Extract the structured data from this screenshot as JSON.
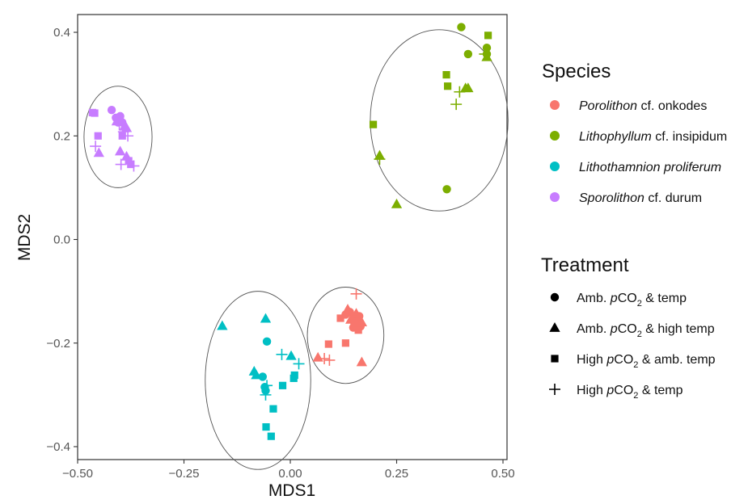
{
  "chart_data": {
    "type": "scatter",
    "xlabel": "MDS1",
    "ylabel": "MDS2",
    "xlim": [
      -0.5,
      0.5
    ],
    "ylim": [
      -0.4,
      0.4
    ],
    "x_ticks": [
      -0.5,
      -0.25,
      0.0,
      0.25,
      0.5
    ],
    "x_tick_labels": [
      "−0.50",
      "−0.25",
      "0.00",
      "0.25",
      "0.50"
    ],
    "y_ticks": [
      -0.4,
      -0.2,
      0.0,
      0.2,
      0.4
    ],
    "y_tick_labels": [
      "−0.4",
      "−0.2",
      "0.0",
      "0.2",
      "0.4"
    ],
    "grid": false,
    "legend_placement": "right",
    "legend": {
      "species_title": "Species",
      "species": [
        {
          "italic": "Porolithon",
          "rest": " cf. onkodes",
          "color": "#F8766D"
        },
        {
          "italic": "Lithophyllum",
          "rest": " cf. insipidum",
          "color": "#7CAE00"
        },
        {
          "italic": "Lithothamnion proliferum",
          "rest": "",
          "color": "#00BFC4"
        },
        {
          "italic": "Sporolithon",
          "rest": " cf. durum",
          "color": "#C77CFF"
        }
      ],
      "treatment_title": "Treatment",
      "treatments": [
        {
          "shape": "circle",
          "pre": "Amb. ",
          "p": "p",
          "co": "CO",
          "sub": "2",
          "post": " & temp"
        },
        {
          "shape": "triangle",
          "pre": "Amb. ",
          "p": "p",
          "co": "CO",
          "sub": "2",
          "post": " & high temp"
        },
        {
          "shape": "square",
          "pre": "High ",
          "p": "p",
          "co": "CO",
          "sub": "2",
          "post": " & amb. temp"
        },
        {
          "shape": "plus",
          "pre": "High ",
          "p": "p",
          "co": "CO",
          "sub": "2",
          "post": " & temp"
        }
      ]
    },
    "ellipses": [
      {
        "species": 0,
        "cx": 0.13,
        "cy": -0.185,
        "rx": 0.09,
        "ry": 0.093
      },
      {
        "species": 1,
        "cx": 0.35,
        "cy": 0.23,
        "rx": 0.162,
        "ry": 0.175
      },
      {
        "species": 2,
        "cx": -0.076,
        "cy": -0.272,
        "rx": 0.124,
        "ry": 0.172
      },
      {
        "species": 3,
        "cx": -0.405,
        "cy": 0.198,
        "rx": 0.08,
        "ry": 0.098
      }
    ],
    "series": [
      {
        "species": 0,
        "shape": "circle",
        "points": [
          [
            0.14,
            -0.14
          ],
          [
            0.15,
            -0.15
          ],
          [
            0.16,
            -0.155
          ],
          [
            0.155,
            -0.162
          ],
          [
            0.165,
            -0.168
          ],
          [
            0.148,
            -0.17
          ],
          [
            0.162,
            -0.148
          ],
          [
            0.13,
            -0.145
          ]
        ]
      },
      {
        "species": 0,
        "shape": "triangle",
        "points": [
          [
            0.135,
            -0.135
          ],
          [
            0.155,
            -0.143
          ],
          [
            0.168,
            -0.16
          ],
          [
            0.065,
            -0.228
          ],
          [
            0.168,
            -0.237
          ],
          [
            0.142,
            -0.155
          ]
        ]
      },
      {
        "species": 0,
        "shape": "square",
        "points": [
          [
            0.118,
            -0.152
          ],
          [
            0.09,
            -0.202
          ],
          [
            0.13,
            -0.2
          ],
          [
            0.15,
            -0.16
          ],
          [
            0.16,
            -0.175
          ]
        ]
      },
      {
        "species": 0,
        "shape": "plus",
        "points": [
          [
            0.155,
            -0.105
          ],
          [
            0.08,
            -0.23
          ],
          [
            0.092,
            -0.233
          ],
          [
            0.145,
            -0.145
          ]
        ]
      },
      {
        "species": 1,
        "shape": "circle",
        "points": [
          [
            0.402,
            0.41
          ],
          [
            0.462,
            0.37
          ],
          [
            0.462,
            0.358
          ],
          [
            0.418,
            0.358
          ],
          [
            0.368,
            0.097
          ]
        ]
      },
      {
        "species": 1,
        "shape": "triangle",
        "points": [
          [
            0.462,
            0.352
          ],
          [
            0.418,
            0.292
          ],
          [
            0.412,
            0.292
          ],
          [
            0.21,
            0.162
          ],
          [
            0.25,
            0.068
          ]
        ]
      },
      {
        "species": 1,
        "shape": "square",
        "points": [
          [
            0.465,
            0.394
          ],
          [
            0.367,
            0.318
          ],
          [
            0.37,
            0.296
          ],
          [
            0.195,
            0.222
          ]
        ]
      },
      {
        "species": 1,
        "shape": "plus",
        "points": [
          [
            0.457,
            0.358
          ],
          [
            0.398,
            0.285
          ],
          [
            0.39,
            0.261
          ],
          [
            0.21,
            0.155
          ]
        ]
      },
      {
        "species": 2,
        "shape": "circle",
        "points": [
          [
            -0.055,
            -0.197
          ],
          [
            -0.065,
            -0.265
          ],
          [
            -0.06,
            -0.285
          ],
          [
            -0.058,
            -0.292
          ]
        ]
      },
      {
        "species": 2,
        "shape": "triangle",
        "points": [
          [
            -0.16,
            -0.167
          ],
          [
            -0.058,
            -0.153
          ],
          [
            -0.085,
            -0.255
          ],
          [
            -0.08,
            -0.262
          ],
          [
            0.002,
            -0.225
          ]
        ]
      },
      {
        "species": 2,
        "shape": "square",
        "points": [
          [
            -0.018,
            -0.282
          ],
          [
            0.008,
            -0.268
          ],
          [
            0.01,
            -0.262
          ],
          [
            -0.04,
            -0.327
          ],
          [
            -0.057,
            -0.362
          ],
          [
            -0.045,
            -0.38
          ]
        ]
      },
      {
        "species": 2,
        "shape": "plus",
        "points": [
          [
            -0.02,
            -0.222
          ],
          [
            0.02,
            -0.24
          ],
          [
            -0.055,
            -0.282
          ],
          [
            -0.058,
            -0.3
          ]
        ]
      },
      {
        "species": 3,
        "shape": "circle",
        "points": [
          [
            -0.42,
            0.25
          ],
          [
            -0.41,
            0.235
          ],
          [
            -0.4,
            0.238
          ],
          [
            -0.405,
            0.226
          ],
          [
            -0.395,
            0.226
          ]
        ]
      },
      {
        "species": 3,
        "shape": "triangle",
        "points": [
          [
            -0.39,
            0.218
          ],
          [
            -0.385,
            0.215
          ],
          [
            -0.408,
            0.228
          ],
          [
            -0.4,
            0.17
          ],
          [
            -0.385,
            0.16
          ],
          [
            -0.45,
            0.167
          ]
        ]
      },
      {
        "species": 3,
        "shape": "square",
        "points": [
          [
            -0.465,
            0.245
          ],
          [
            -0.46,
            0.244
          ],
          [
            -0.452,
            0.2
          ],
          [
            -0.395,
            0.2
          ],
          [
            -0.38,
            0.152
          ],
          [
            -0.375,
            0.145
          ]
        ]
      },
      {
        "species": 3,
        "shape": "plus",
        "points": [
          [
            -0.402,
            0.222
          ],
          [
            -0.392,
            0.208
          ],
          [
            -0.382,
            0.2
          ],
          [
            -0.458,
            0.18
          ],
          [
            -0.398,
            0.145
          ],
          [
            -0.368,
            0.142
          ]
        ]
      }
    ]
  }
}
